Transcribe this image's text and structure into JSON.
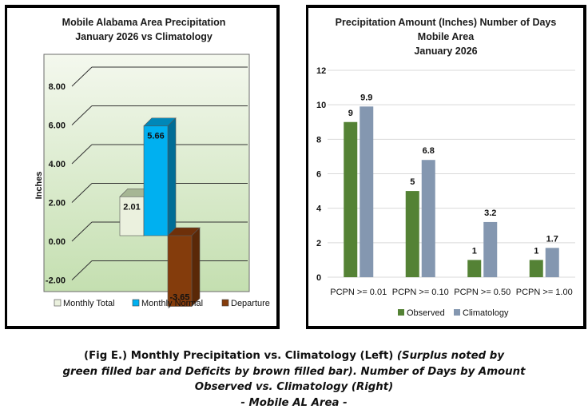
{
  "chart_data": [
    {
      "type": "bar",
      "style": "3d-column",
      "title": "Mobile Alabama Area Precipitation",
      "subtitle": "January 2026 vs Climatology",
      "xlabel": "",
      "ylabel": "Inches",
      "ylim": [
        -2,
        8
      ],
      "yticks": [
        "-2.00",
        "0.00",
        "2.00",
        "4.00",
        "6.00",
        "8.00"
      ],
      "ytick_values": [
        -2,
        0,
        2,
        4,
        6,
        8
      ],
      "grid": true,
      "legend_position": "bottom",
      "series": [
        {
          "name": "Monthly Total",
          "value": 2.01,
          "label": "2.01",
          "color": "#ebf1de",
          "top_color": "#a6b694",
          "side_color": "#c4d4b0"
        },
        {
          "name": "Monthly Normal",
          "value": 5.66,
          "label": "5.66",
          "color": "#00b0f0",
          "top_color": "#0087b8",
          "side_color": "#006d96"
        },
        {
          "name": "Departure",
          "value": -3.65,
          "label": "-3.65",
          "color": "#843c0c",
          "top_color": "#6e300a",
          "side_color": "#5a2807"
        }
      ],
      "background": [
        "#f4f8ee",
        "#c4dfb0"
      ]
    },
    {
      "type": "bar",
      "title": "Precipitation Amount (Inches) Number of Days",
      "subtitle_lines": [
        "Mobile Area",
        "January 2026"
      ],
      "xlabel": "",
      "ylabel": "",
      "ylim": [
        0,
        12
      ],
      "yticks": [
        "0",
        "2",
        "4",
        "6",
        "8",
        "10",
        "12"
      ],
      "ytick_values": [
        0,
        2,
        4,
        6,
        8,
        10,
        12
      ],
      "grid": true,
      "legend_position": "bottom",
      "categories": [
        "PCPN >= 0.01",
        "PCPN >= 0.10",
        "PCPN >= 0.50",
        "PCPN >= 1.00"
      ],
      "series": [
        {
          "name": "Observed",
          "values": [
            9,
            5,
            1,
            1
          ],
          "labels": [
            "9",
            "5",
            "1",
            "1"
          ],
          "color": "#548235"
        },
        {
          "name": "Climatology",
          "values": [
            9.9,
            6.8,
            3.2,
            1.7
          ],
          "labels": [
            "9.9",
            "6.8",
            "3.2",
            "1.7"
          ],
          "color": "#8497b0"
        }
      ]
    }
  ],
  "caption": {
    "part1": "(Fig E.) Monthly Precipitation vs. Climatology (Left) ",
    "part2": "(Surplus noted by green filled bar and Deficits by brown filled bar). Number of Days by Amount Observed vs. Climatology (Right)",
    "line1_bold": "(Fig E.) Monthly Precipitation vs. Climatology (Left) ",
    "line1_italic": "(Surplus noted by",
    "line2_italic": "green filled bar and Deficits by brown filled bar). Number of Days by Amount",
    "line3_italic": "Observed vs. Climatology (Right)",
    "line4_italic": "- Mobile AL Area -"
  }
}
